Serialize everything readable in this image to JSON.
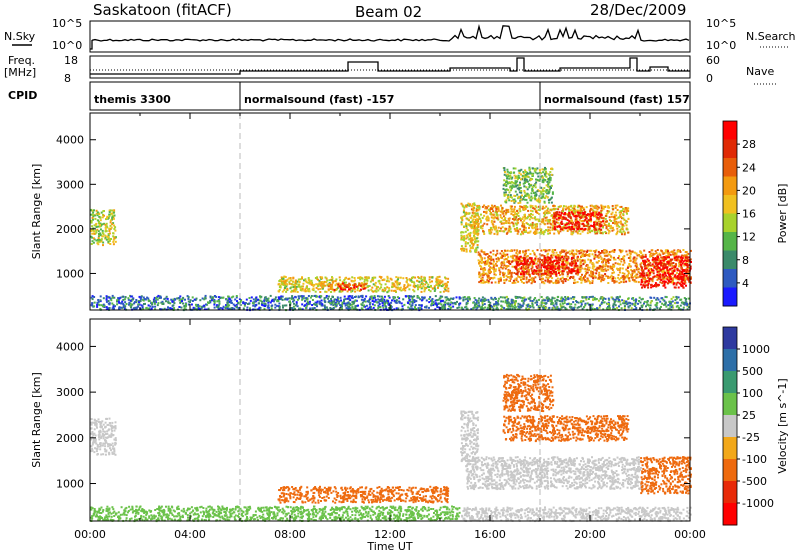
{
  "header": {
    "station": "Saskatoon (fitACF)",
    "beam": "Beam 02",
    "date": "28/Dec/2009"
  },
  "top_panels": {
    "nsky_label": "N.Sky",
    "nsearch_label": "N.Search",
    "freq_label_1": "Freq.",
    "freq_label_2": "[MHz]",
    "nave_label": "Nave",
    "cpid_label": "CPID",
    "n_ticks_left": [
      "10^5",
      "10^0"
    ],
    "n_ticks_right": [
      "10^5",
      "10^0"
    ],
    "freq_ticks": [
      "18",
      "8"
    ],
    "nave_ticks": [
      "60",
      "0"
    ],
    "cpid_segments": [
      {
        "name": "themis 3300",
        "start": 0.0,
        "end": 6.0
      },
      {
        "name": "normalsound (fast) -157",
        "start": 6.0,
        "end": 18.0
      },
      {
        "name": "normalsound (fast) 157",
        "start": 18.0,
        "end": 24.0
      }
    ]
  },
  "chart_data": [
    {
      "type": "heatmap",
      "title": "",
      "xlabel": "",
      "ylabel": "Slant Range [km]",
      "xlim": [
        0,
        24
      ],
      "ylim": [
        180,
        4600
      ],
      "yticks": [
        "1000",
        "2000",
        "3000",
        "4000"
      ],
      "colorbar": {
        "label": "Power [dB]",
        "ticks": [
          "4",
          "8",
          "12",
          "16",
          "20",
          "24",
          "28"
        ],
        "colors": [
          "#1a1aff",
          "#2e5ac0",
          "#3a8a6a",
          "#55b548",
          "#a8d22c",
          "#f0c020",
          "#f39a10",
          "#e85e0a",
          "#e02a05",
          "#ff0000"
        ]
      },
      "regions": [
        {
          "t0": 0.0,
          "t1": 1.0,
          "r0": 1650,
          "r1": 2450,
          "value": 16
        },
        {
          "t0": 0.0,
          "t1": 14.8,
          "r0": 200,
          "r1": 520,
          "value": 8
        },
        {
          "t0": 7.5,
          "t1": 14.3,
          "r0": 600,
          "r1": 950,
          "value": 18
        },
        {
          "t0": 9.5,
          "t1": 11.0,
          "r0": 650,
          "r1": 800,
          "value": 26
        },
        {
          "t0": 14.8,
          "t1": 24.0,
          "r0": 200,
          "r1": 500,
          "value": 10
        },
        {
          "t0": 15.5,
          "t1": 24.0,
          "r0": 800,
          "r1": 1550,
          "value": 22
        },
        {
          "t0": 17.0,
          "t1": 19.5,
          "r0": 1000,
          "r1": 1400,
          "value": 30
        },
        {
          "t0": 22.0,
          "t1": 24.0,
          "r0": 700,
          "r1": 1400,
          "value": 30
        },
        {
          "t0": 15.2,
          "t1": 21.5,
          "r0": 1900,
          "r1": 2550,
          "value": 20
        },
        {
          "t0": 18.5,
          "t1": 20.5,
          "r0": 2000,
          "r1": 2400,
          "value": 30
        },
        {
          "t0": 16.5,
          "t1": 18.5,
          "r0": 2600,
          "r1": 3400,
          "value": 14
        },
        {
          "t0": 14.8,
          "t1": 15.5,
          "r0": 1500,
          "r1": 2600,
          "value": 18
        }
      ]
    },
    {
      "type": "heatmap",
      "title": "",
      "xlabel": "Time UT",
      "ylabel": "Slant Range [km]",
      "xlim": [
        0,
        24
      ],
      "ylim": [
        180,
        4600
      ],
      "xticks": [
        "00:00",
        "04:00",
        "08:00",
        "12:00",
        "16:00",
        "20:00",
        "00:00"
      ],
      "yticks": [
        "1000",
        "2000",
        "3000",
        "4000"
      ],
      "colorbar": {
        "label": "Velocity [m s^-1]",
        "ticks": [
          "1000",
          "500",
          "100",
          "25",
          "-25",
          "-100",
          "-500",
          "-1000"
        ],
        "colors": [
          "#2e3aa0",
          "#2d6fa8",
          "#3a9a70",
          "#6bc24a",
          "#c8c8c8",
          "#f2a81a",
          "#ee6a0e",
          "#e82a08",
          "#ff0000"
        ]
      },
      "regions": [
        {
          "t0": 0.0,
          "t1": 1.0,
          "r0": 1650,
          "r1": 2450,
          "value": 0
        },
        {
          "t0": 0.0,
          "t1": 14.8,
          "r0": 200,
          "r1": 520,
          "value": 60
        },
        {
          "t0": 7.5,
          "t1": 14.3,
          "r0": 600,
          "r1": 950,
          "value": -150
        },
        {
          "t0": 14.8,
          "t1": 24.0,
          "r0": 200,
          "r1": 500,
          "value": 0
        },
        {
          "t0": 15.0,
          "t1": 22.0,
          "r0": 900,
          "r1": 1600,
          "value": 0
        },
        {
          "t0": 22.0,
          "t1": 24.0,
          "r0": 800,
          "r1": 1600,
          "value": -150
        },
        {
          "t0": 16.5,
          "t1": 21.5,
          "r0": 1950,
          "r1": 2500,
          "value": -300
        },
        {
          "t0": 16.5,
          "t1": 18.5,
          "r0": 2600,
          "r1": 3400,
          "value": -200
        },
        {
          "t0": 14.8,
          "t1": 15.5,
          "r0": 1500,
          "r1": 2600,
          "value": 0
        }
      ]
    }
  ]
}
